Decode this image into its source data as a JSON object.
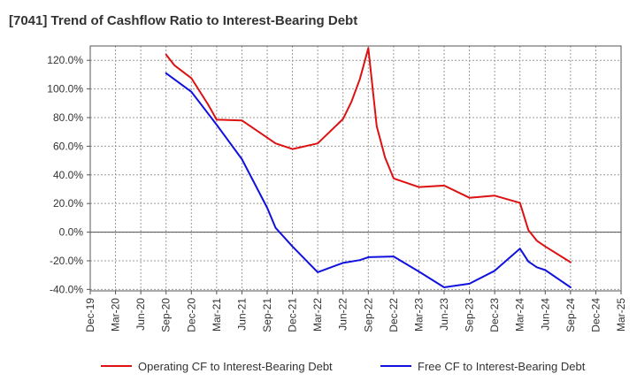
{
  "chart_data": {
    "type": "line",
    "title": "[7041]  Trend of Cashflow Ratio to Interest-Bearing Debt",
    "xlabel": "",
    "ylabel": "",
    "x_ticks": [
      "Dec-19",
      "Mar-20",
      "Jun-20",
      "Sep-20",
      "Dec-20",
      "Mar-21",
      "Jun-21",
      "Sep-21",
      "Dec-21",
      "Mar-22",
      "Jun-22",
      "Sep-22",
      "Dec-22",
      "Mar-23",
      "Jun-23",
      "Sep-23",
      "Dec-23",
      "Mar-24",
      "Jun-24",
      "Sep-24",
      "Dec-24",
      "Mar-25"
    ],
    "y_ticks": [
      "120.0%",
      "100.0%",
      "80.0%",
      "60.0%",
      "40.0%",
      "20.0%",
      "0.0%",
      "-20.0%",
      "-40.0%"
    ],
    "y_tick_values": [
      120,
      100,
      80,
      60,
      40,
      20,
      0,
      -20,
      -40
    ],
    "ylim": [
      -41,
      130
    ],
    "grid": true,
    "legend_position": "bottom",
    "series": [
      {
        "name": "Operating CF to Interest-Bearing Debt",
        "color": "#dd1111",
        "points": [
          [
            "Sep-20",
            124.0
          ],
          [
            "Oct-20",
            116.5
          ],
          [
            "Dec-20",
            107.5
          ],
          [
            "Feb-21",
            89.0
          ],
          [
            "Mar-21",
            78.5
          ],
          [
            "Jun-21",
            78.0
          ],
          [
            "Sep-21",
            66.0
          ],
          [
            "Oct-21",
            62.0
          ],
          [
            "Dec-21",
            58.0
          ],
          [
            "Mar-22",
            62.0
          ],
          [
            "Jun-22",
            79.0
          ],
          [
            "Jul-22",
            91.0
          ],
          [
            "Aug-22",
            107.0
          ],
          [
            "Sep-22",
            128.5
          ],
          [
            "Oct-22",
            74.0
          ],
          [
            "Nov-22",
            52.0
          ],
          [
            "Dec-22",
            37.5
          ],
          [
            "Mar-23",
            31.5
          ],
          [
            "Jun-23",
            32.5
          ],
          [
            "Sep-23",
            24.0
          ],
          [
            "Dec-23",
            25.5
          ],
          [
            "Mar-24",
            20.5
          ],
          [
            "Apr-24",
            1.5
          ],
          [
            "May-24",
            -6.0
          ],
          [
            "Jun-24",
            -10.0
          ],
          [
            "Sep-24",
            -21.0
          ]
        ]
      },
      {
        "name": "Free CF to Interest-Bearing Debt",
        "color": "#1111dd",
        "points": [
          [
            "Sep-20",
            111.0
          ],
          [
            "Dec-20",
            98.0
          ],
          [
            "Mar-21",
            75.0
          ],
          [
            "Jun-21",
            51.0
          ],
          [
            "Sep-21",
            17.0
          ],
          [
            "Oct-21",
            3.0
          ],
          [
            "Dec-21",
            -10.0
          ],
          [
            "Mar-22",
            -28.0
          ],
          [
            "Jun-22",
            -21.5
          ],
          [
            "Aug-22",
            -19.5
          ],
          [
            "Sep-22",
            -17.5
          ],
          [
            "Dec-22",
            -17.0
          ],
          [
            "Mar-23",
            -27.5
          ],
          [
            "Jun-23",
            -38.5
          ],
          [
            "Sep-23",
            -36.0
          ],
          [
            "Dec-23",
            -27.0
          ],
          [
            "Mar-24",
            -11.5
          ],
          [
            "Apr-24",
            -20.5
          ],
          [
            "May-24",
            -24.5
          ],
          [
            "Jun-24",
            -26.5
          ],
          [
            "Sep-24",
            -38.5
          ]
        ]
      }
    ]
  }
}
